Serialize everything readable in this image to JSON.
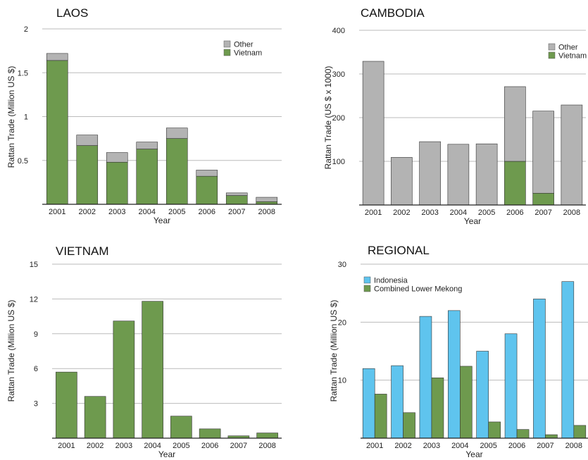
{
  "colors": {
    "other": "#b3b3b3",
    "vietnam": "#6e9a4e",
    "indonesia": "#5fc4ee",
    "mekong": "#6e9a4e",
    "grid": "#bbbbbb",
    "bar_edge": "#333333"
  },
  "chart_data": [
    {
      "id": "laos",
      "type": "bar",
      "stacked": true,
      "title": "LAOS",
      "xlabel": "Year",
      "ylabel": "Rattan Trade (Million US $)",
      "categories": [
        "2001",
        "2002",
        "2003",
        "2004",
        "2005",
        "2006",
        "2007",
        "2008"
      ],
      "ylim": [
        0,
        2
      ],
      "yticks": [
        0.5,
        1,
        1.5,
        2
      ],
      "ytick_labels": [
        "0.5",
        "1",
        "1.5",
        "2"
      ],
      "legend_position": "top-right",
      "series": [
        {
          "name": "Vietnam",
          "color": "#6e9a4e",
          "values": [
            1.64,
            0.67,
            0.48,
            0.63,
            0.75,
            0.32,
            0.1,
            0.03
          ]
        },
        {
          "name": "Other",
          "color": "#b3b3b3",
          "values": [
            0.08,
            0.12,
            0.11,
            0.08,
            0.12,
            0.07,
            0.03,
            0.05
          ]
        }
      ],
      "legend_order": [
        "Other",
        "Vietnam"
      ]
    },
    {
      "id": "cambodia",
      "type": "bar",
      "stacked": true,
      "title": "CAMBODIA",
      "xlabel": "Year",
      "ylabel": "Rattan Trade (US $ x 1000)",
      "categories": [
        "2001",
        "2002",
        "2003",
        "2004",
        "2005",
        "2006",
        "2007",
        "2008"
      ],
      "ylim": [
        0,
        400
      ],
      "yticks": [
        100,
        200,
        300,
        400
      ],
      "ytick_labels": [
        "100",
        "200",
        "300",
        "400"
      ],
      "legend_position": "top-right",
      "series": [
        {
          "name": "Vietnam",
          "color": "#6e9a4e",
          "values": [
            0,
            0,
            0,
            0,
            0,
            100,
            27,
            0
          ]
        },
        {
          "name": "Other",
          "color": "#b3b3b3",
          "values": [
            329,
            109,
            145,
            139,
            140,
            171,
            188,
            229
          ]
        }
      ],
      "legend_order": [
        "Other",
        "Vietnam"
      ]
    },
    {
      "id": "vietnam",
      "type": "bar",
      "stacked": false,
      "title": "VIETNAM",
      "xlabel": "Year",
      "ylabel": "Rattan Trade (Million US $)",
      "categories": [
        "2001",
        "2002",
        "2003",
        "2004",
        "2005",
        "2006",
        "2007",
        "2008"
      ],
      "ylim": [
        0,
        15
      ],
      "yticks": [
        3,
        6,
        9,
        12,
        15
      ],
      "ytick_labels": [
        "3",
        "6",
        "9",
        "12",
        "15"
      ],
      "series": [
        {
          "name": "",
          "color": "#6e9a4e",
          "values": [
            5.7,
            3.6,
            10.1,
            11.8,
            1.9,
            0.8,
            0.2,
            0.45
          ]
        }
      ]
    },
    {
      "id": "regional",
      "type": "bar",
      "stacked": false,
      "grouped": true,
      "title": "REGIONAL",
      "xlabel": "Year",
      "ylabel": "Rattan Trade (Million US $)",
      "categories": [
        "2001",
        "2002",
        "2003",
        "2004",
        "2005",
        "2006",
        "2007",
        "2008"
      ],
      "ylim": [
        0,
        30
      ],
      "yticks": [
        10,
        20,
        30
      ],
      "ytick_labels": [
        "10",
        "20",
        "30"
      ],
      "legend_position": "top-left",
      "series": [
        {
          "name": "Indonesia",
          "color": "#5fc4ee",
          "values": [
            12,
            12.5,
            21,
            22,
            15,
            18,
            24,
            27
          ]
        },
        {
          "name": "Combined Lower Mekong",
          "color": "#6e9a4e",
          "values": [
            7.6,
            4.4,
            10.4,
            12.4,
            2.8,
            1.5,
            0.6,
            2.2
          ]
        }
      ],
      "legend_order": [
        "Indonesia",
        "Combined Lower Mekong"
      ]
    }
  ]
}
